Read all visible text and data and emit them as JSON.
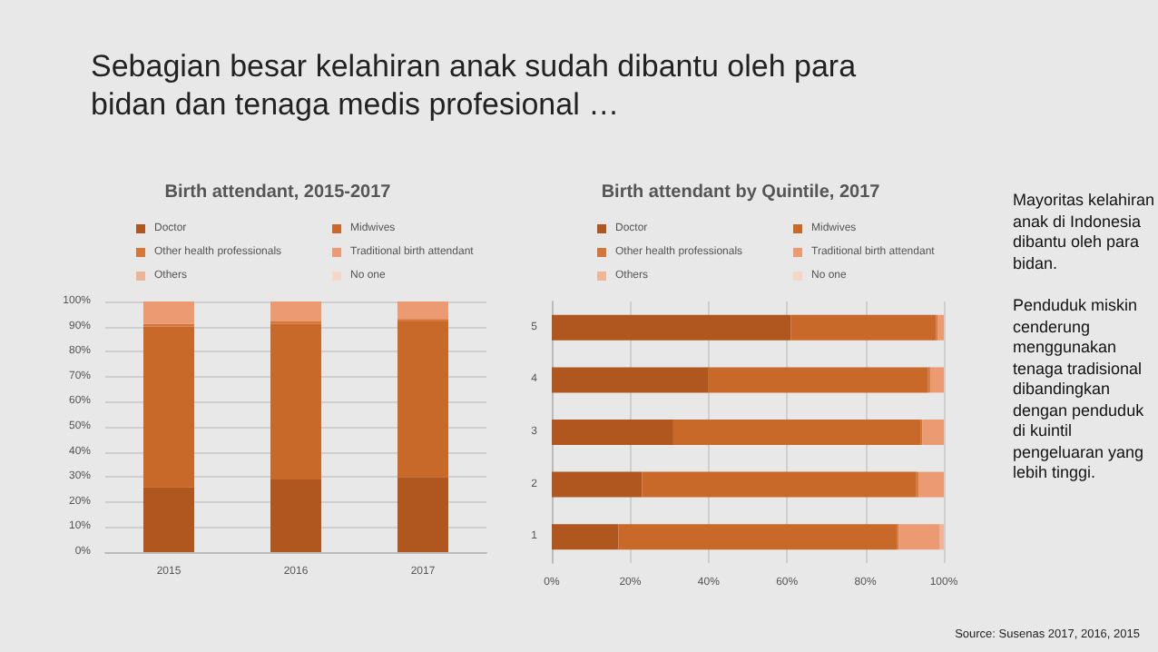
{
  "chart_data": [
    {
      "type": "bar",
      "title": "Birth attendant, 2015-2017",
      "categories": [
        "2015",
        "2016",
        "2017"
      ],
      "stacked": true,
      "grid": "y",
      "legend": "top",
      "ylim": [
        0,
        100
      ],
      "yticks": [
        {
          "value": 0,
          "label": "0%"
        },
        {
          "value": 10,
          "label": "10%"
        },
        {
          "value": 20,
          "label": "20%"
        },
        {
          "value": 30,
          "label": "30%"
        },
        {
          "value": 40,
          "label": "40%"
        },
        {
          "value": 50,
          "label": "50%"
        },
        {
          "value": 60,
          "label": "60%"
        },
        {
          "value": 70,
          "label": "70%"
        },
        {
          "value": 80,
          "label": "80%"
        },
        {
          "value": 90,
          "label": "90%"
        },
        {
          "value": 100,
          "label": "100%"
        }
      ],
      "series": [
        {
          "name": "Doctor",
          "color": "#b0571f",
          "values": [
            26,
            29,
            30
          ]
        },
        {
          "name": "Midwives",
          "color": "#c8692a",
          "values": [
            64,
            62,
            62
          ]
        },
        {
          "name": "Other health professionals",
          "color": "#d4753a",
          "values": [
            1,
            1,
            1
          ]
        },
        {
          "name": "Traditional birth attendant",
          "color": "#ec9a72",
          "values": [
            9,
            8,
            7
          ]
        },
        {
          "name": "Others",
          "color": "#f0b597",
          "values": [
            null,
            null,
            null
          ]
        },
        {
          "name": "No one",
          "color": "#f6d6c6",
          "values": [
            0,
            0,
            0
          ]
        }
      ]
    },
    {
      "type": "bar",
      "title": "Birth attendant by Quintile, 2017",
      "categories": [
        "5",
        "4",
        "3",
        "2",
        "1"
      ],
      "stacked": true,
      "orientation": "horizontal",
      "grid": "x",
      "legend": "top",
      "xlim": [
        0,
        100
      ],
      "xticks": [
        {
          "value": 0,
          "label": "0%"
        },
        {
          "value": 20,
          "label": "20%"
        },
        {
          "value": 40,
          "label": "40%"
        },
        {
          "value": 60,
          "label": "60%"
        },
        {
          "value": 80,
          "label": "80%"
        },
        {
          "value": 100,
          "label": "100%"
        }
      ],
      "series": [
        {
          "name": "Doctor",
          "color": "#b0571f",
          "values": [
            61,
            40,
            31,
            23,
            17
          ]
        },
        {
          "name": "Midwives",
          "color": "#c8692a",
          "values": [
            37,
            56,
            63,
            70,
            71
          ]
        },
        {
          "name": "Other health professionals",
          "color": "#d4753a",
          "values": [
            0.5,
            0.5,
            0.5,
            0.5,
            0.5
          ]
        },
        {
          "name": "Traditional birth attendant",
          "color": "#ec9a72",
          "values": [
            1.5,
            3.5,
            5.5,
            6.5,
            10.5
          ]
        },
        {
          "name": "Others",
          "color": "#f0b597",
          "values": [
            0,
            0,
            0,
            0,
            1
          ]
        },
        {
          "name": "No one",
          "color": "#f6d6c6",
          "values": [
            0,
            0,
            0,
            0,
            0
          ]
        }
      ]
    },
    {
      "type": "other",
      "title": "Sebagian besar kelahiran anak sudah dibantu oleh para bidan dan tenaga medis profesional …",
      "annotations": [
        "Mayoritas kelahiran anak di Indonesia dibantu oleh para bidan.",
        "Penduduk miskin cenderung menggunakan tenaga tradisional dibandingkan dengan penduduk di kuintil pengeluaran yang lebih tinggi.",
        "Source: Susenas 2017, 2016, 2015"
      ]
    }
  ]
}
